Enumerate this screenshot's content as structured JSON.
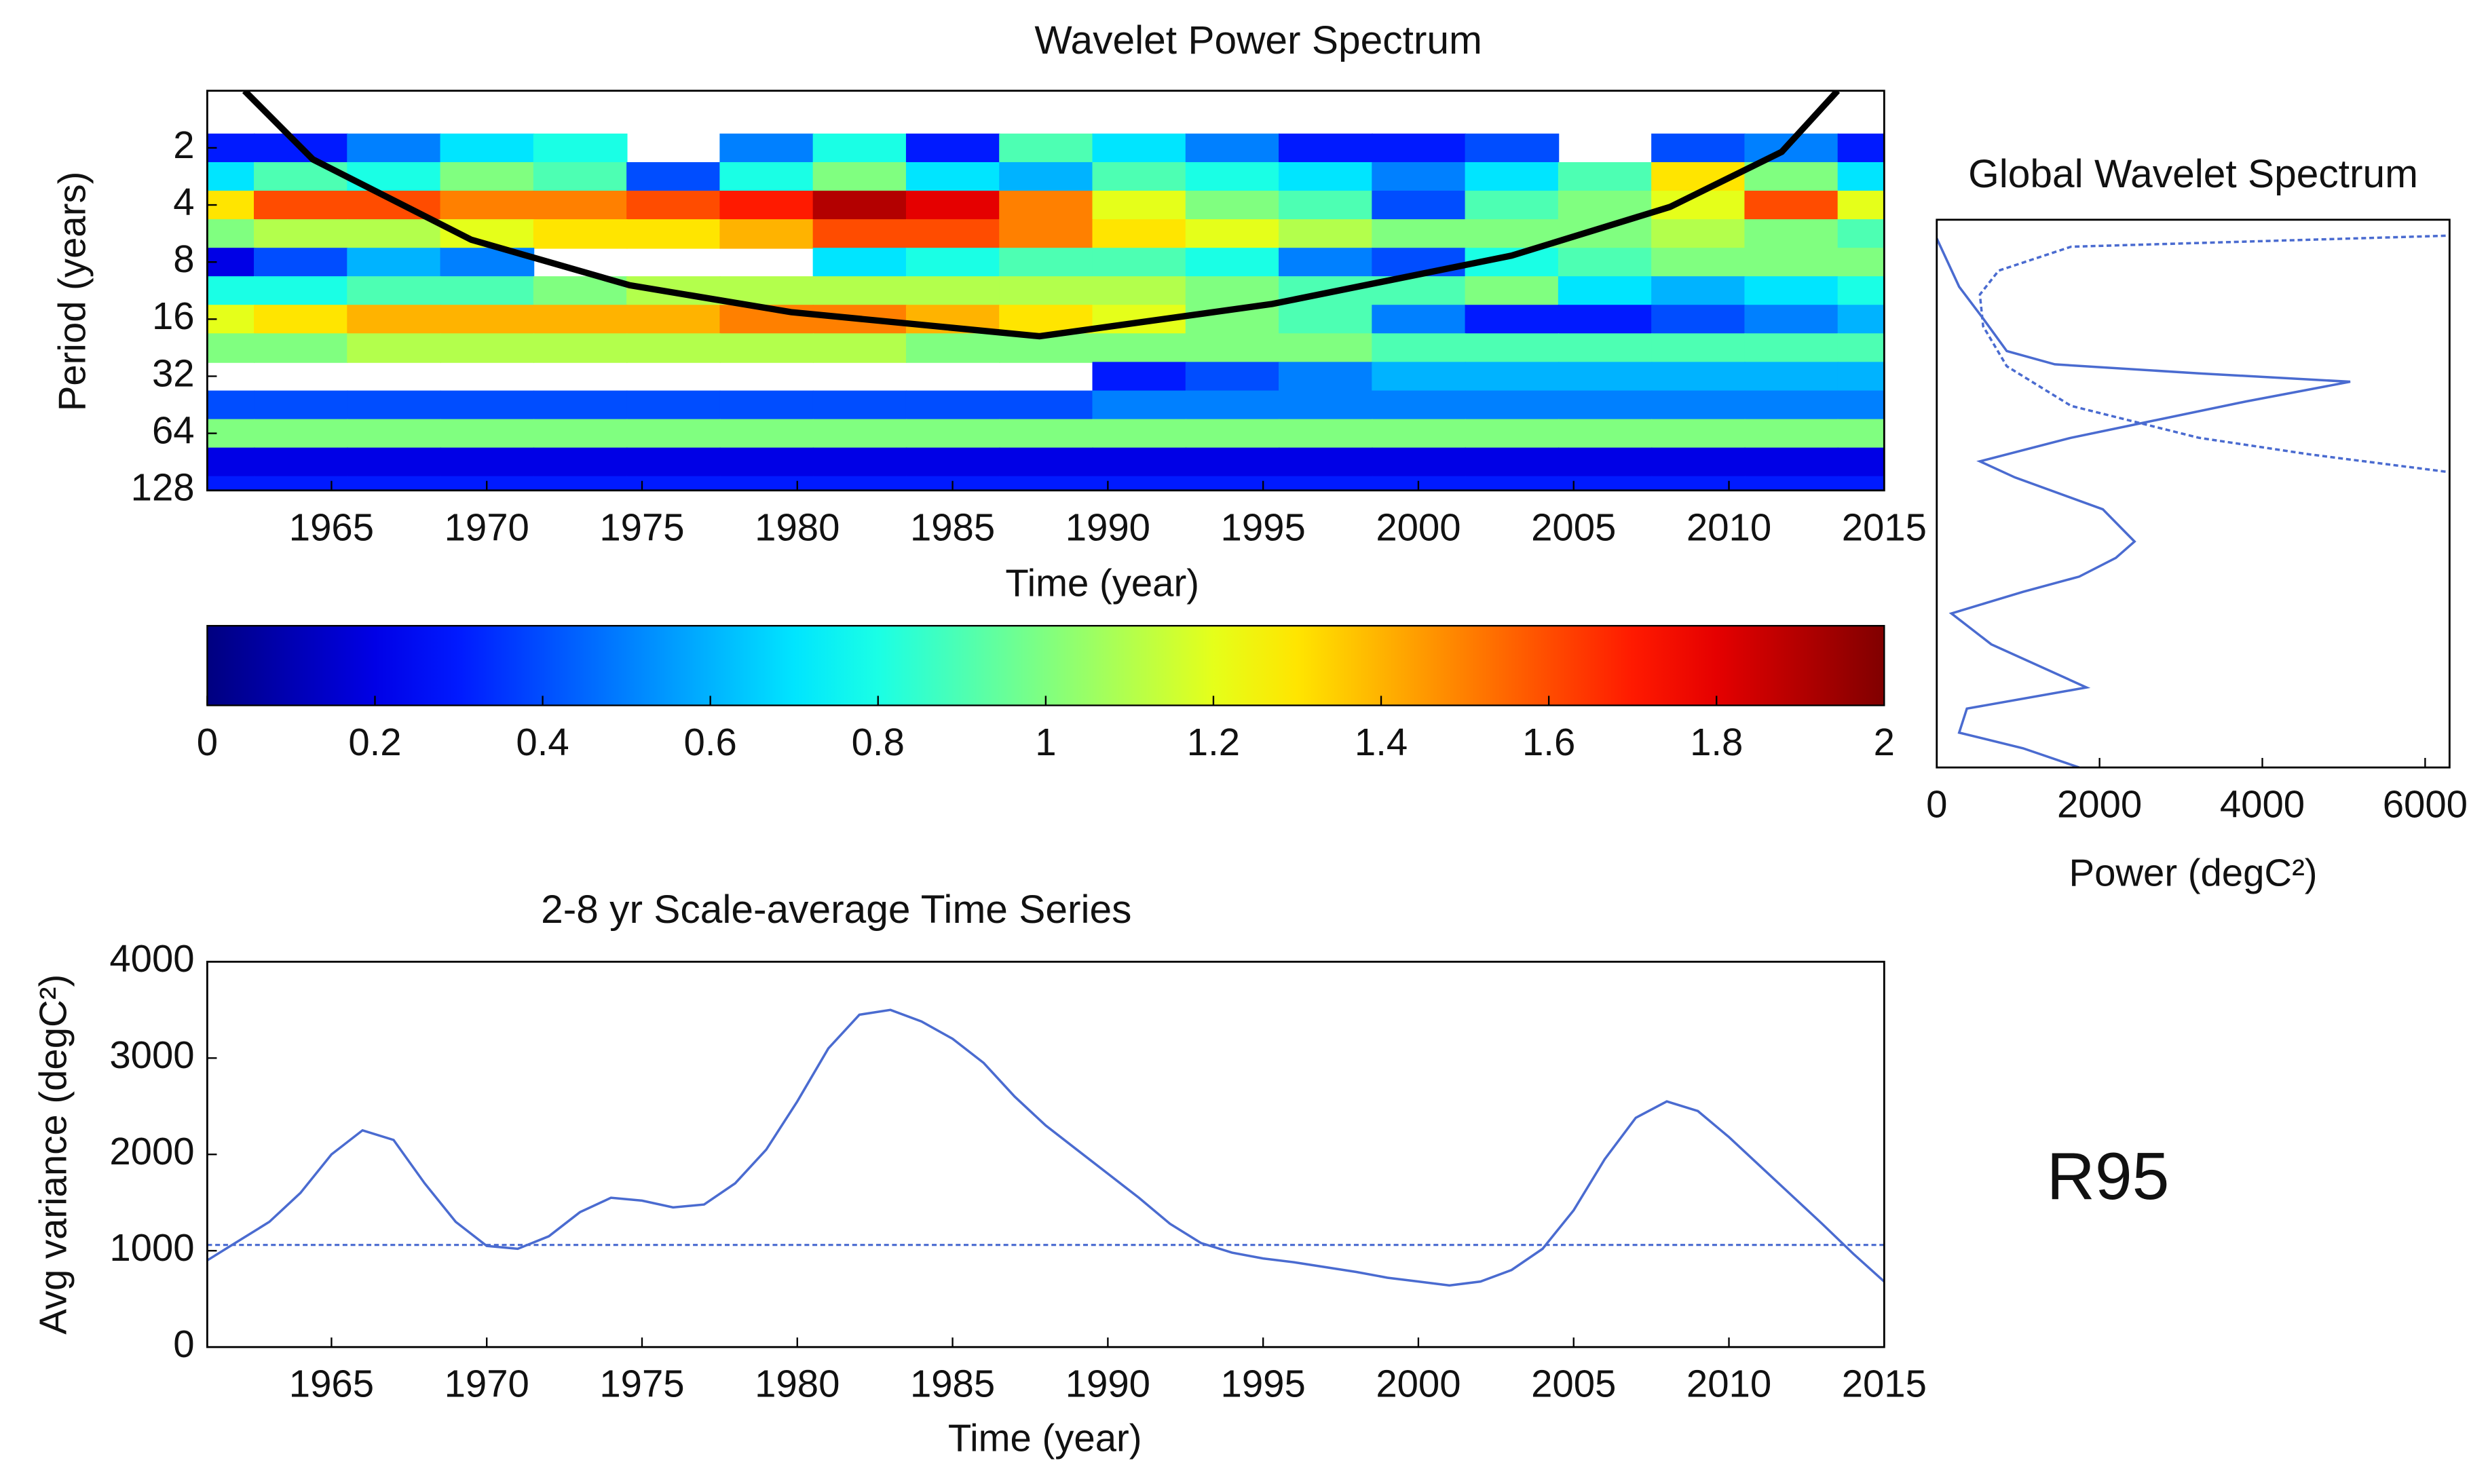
{
  "chart_data": [
    {
      "type": "contour",
      "title": "Wavelet Power Spectrum",
      "xlabel": "Time (year)",
      "ylabel": "Period (years)",
      "x": [
        1961,
        1964,
        1967,
        1970,
        1973,
        1976,
        1979,
        1982,
        1985,
        1988,
        1991,
        1994,
        1997,
        2000,
        2003,
        2006,
        2009,
        2012,
        2015
      ],
      "y": [
        2,
        2.83,
        4,
        5.66,
        8,
        11.3,
        16,
        22.6,
        32,
        45.3,
        64,
        90.5,
        128
      ],
      "z": [
        [
          0.3,
          0.3,
          0.5,
          0.7,
          0.8,
          null,
          0.5,
          0.8,
          0.3,
          0.9,
          0.7,
          0.5,
          0.3,
          0.3,
          0.4,
          null,
          0.4,
          0.5,
          0.3
        ],
        [
          0.7,
          0.9,
          0.8,
          1.0,
          0.9,
          0.4,
          0.8,
          1.0,
          0.7,
          0.6,
          0.9,
          0.8,
          0.7,
          0.5,
          0.7,
          0.9,
          1.3,
          1.0,
          0.7
        ],
        [
          1.3,
          1.6,
          1.6,
          1.5,
          1.5,
          1.6,
          1.7,
          1.9,
          1.8,
          1.5,
          1.2,
          1.0,
          0.9,
          0.4,
          0.9,
          1.0,
          1.2,
          1.6,
          1.2
        ],
        [
          1.0,
          1.1,
          1.1,
          1.2,
          1.3,
          1.3,
          1.4,
          1.6,
          1.6,
          1.5,
          1.3,
          1.2,
          1.1,
          1.0,
          1.0,
          1.0,
          1.1,
          1.0,
          0.9
        ],
        [
          0.2,
          0.4,
          0.6,
          0.5,
          null,
          null,
          null,
          0.7,
          0.8,
          0.9,
          0.9,
          0.8,
          0.5,
          0.4,
          0.8,
          0.9,
          1.0,
          1.0,
          1.0
        ],
        [
          0.8,
          0.8,
          0.9,
          0.9,
          1.0,
          1.1,
          1.1,
          1.1,
          1.1,
          1.1,
          1.1,
          1.0,
          0.9,
          0.9,
          1.0,
          0.7,
          0.6,
          0.7,
          0.8
        ],
        [
          1.2,
          1.3,
          1.4,
          1.4,
          1.4,
          1.4,
          1.5,
          1.5,
          1.4,
          1.3,
          1.2,
          1.0,
          0.9,
          0.5,
          0.3,
          0.3,
          0.4,
          0.5,
          0.6
        ],
        [
          1.0,
          1.0,
          1.1,
          1.1,
          1.1,
          1.1,
          1.1,
          1.1,
          1.0,
          1.0,
          1.0,
          1.0,
          1.0,
          0.9,
          0.9,
          0.9,
          0.9,
          0.9,
          0.9
        ],
        [
          null,
          null,
          null,
          null,
          null,
          null,
          null,
          null,
          null,
          null,
          0.3,
          0.4,
          0.5,
          0.6,
          0.6,
          0.6,
          0.6,
          0.6,
          0.6
        ],
        [
          0.4,
          0.4,
          0.4,
          0.4,
          0.4,
          0.4,
          0.4,
          0.4,
          0.4,
          0.4,
          0.5,
          0.5,
          0.5,
          0.5,
          0.5,
          0.5,
          0.5,
          0.5,
          0.5
        ],
        [
          1.0,
          1.0,
          1.0,
          1.0,
          1.0,
          1.0,
          1.0,
          1.0,
          1.0,
          1.0,
          1.0,
          1.0,
          1.0,
          1.0,
          1.0,
          1.0,
          1.0,
          1.0,
          1.0
        ],
        [
          0.2,
          0.2,
          0.2,
          0.2,
          0.2,
          0.2,
          0.2,
          0.2,
          0.2,
          0.2,
          0.2,
          0.2,
          0.2,
          0.2,
          0.2,
          0.2,
          0.2,
          0.2,
          0.2
        ],
        [
          0.3,
          0.3,
          0.3,
          0.3,
          0.3,
          0.3,
          0.3,
          0.3,
          0.3,
          0.3,
          0.3,
          0.3,
          0.3,
          0.3,
          0.3,
          0.3,
          0.3,
          0.3,
          0.3
        ]
      ],
      "coi": {
        "x": [
          1962.2,
          1964.4,
          1969.5,
          1974.6,
          1979.8,
          1987.8,
          1995.3,
          2003,
          2008.1,
          2011.7,
          2013.5
        ],
        "y": [
          1,
          2.3,
          6.1,
          10.6,
          14.7,
          19.7,
          13.3,
          7.4,
          4.1,
          2.1,
          1
        ],
        "color": "#000000"
      },
      "xlim": [
        1961,
        2015
      ],
      "ylim": [
        1,
        128
      ],
      "yscale": "log2",
      "yreversed": true,
      "xticks": [
        1965,
        1970,
        1975,
        1980,
        1985,
        1990,
        1995,
        2000,
        2005,
        2010,
        2015
      ],
      "yticks": [
        2,
        4,
        8,
        16,
        32,
        64,
        128
      ],
      "clim": [
        0,
        2
      ],
      "colormap": "jet"
    },
    {
      "type": "colorbar",
      "clim": [
        0,
        2
      ],
      "colormap": "jet",
      "ticks": [
        0,
        0.2,
        0.4,
        0.6,
        0.8,
        1,
        1.2,
        1.4,
        1.6,
        1.8,
        2
      ]
    },
    {
      "type": "line",
      "title": "Global Wavelet Spectrum",
      "xlabel": "Power (degC²)",
      "xlim": [
        0,
        6300
      ],
      "xticks": [
        0,
        2000,
        4000,
        6000
      ],
      "ylim": [
        1,
        128
      ],
      "yscale": "log2",
      "yreversed": true,
      "series": [
        {
          "color": "#4a6bd0",
          "linestyle": "solid",
          "x": [
            0,
            275,
            570,
            860,
            1450,
            3220,
            5080,
            3800,
            1650,
            530,
            960,
            2040,
            2430,
            2200,
            1750,
            1060,
            180,
            670,
            1840,
            370,
            275,
            1060,
            1750
          ],
          "y": [
            1.18,
            1.81,
            2.4,
            3.2,
            3.6,
            3.9,
            4.2,
            5.0,
            6.9,
            8.5,
            9.8,
            13,
            17.3,
            20,
            23.6,
            27,
            32.7,
            43,
            63,
            76,
            94,
            108,
            128
          ]
        },
        {
          "color": "#4a6bd0",
          "linestyle": "dashed",
          "x": [
            6350,
            1650,
            760,
            530,
            570,
            860,
            1650,
            3220,
            4590,
            6350
          ],
          "y": [
            1.15,
            1.27,
            1.57,
            1.94,
            2.57,
            3.66,
            5.2,
            6.9,
            8.0,
            9.4
          ]
        }
      ]
    },
    {
      "type": "line",
      "title": "2-8 yr Scale-average Time Series",
      "xlabel": "Time (year)",
      "ylabel": "Avg variance (degC²)",
      "x": [
        1961,
        1962,
        1963,
        1964,
        1965,
        1966,
        1967,
        1968,
        1969,
        1970,
        1971,
        1972,
        1973,
        1974,
        1975,
        1976,
        1977,
        1978,
        1979,
        1980,
        1981,
        1982,
        1983,
        1984,
        1985,
        1986,
        1987,
        1988,
        1989,
        1990,
        1991,
        1992,
        1993,
        1994,
        1995,
        1996,
        1997,
        1998,
        1999,
        2000,
        2001,
        2002,
        2003,
        2004,
        2005,
        2006,
        2007,
        2008,
        2009,
        2010,
        2011,
        2012,
        2013,
        2014,
        2015
      ],
      "series": [
        {
          "color": "#4a6bd0",
          "values": [
            900,
            1100,
            1300,
            1600,
            2000,
            2250,
            2150,
            1700,
            1300,
            1050,
            1020,
            1150,
            1400,
            1550,
            1520,
            1450,
            1480,
            1700,
            2050,
            2550,
            3100,
            3450,
            3500,
            3380,
            3200,
            2950,
            2600,
            2300,
            2050,
            1800,
            1550,
            1280,
            1080,
            980,
            920,
            880,
            830,
            780,
            720,
            680,
            640,
            680,
            800,
            1020,
            1420,
            1950,
            2380,
            2550,
            2450,
            2180,
            1880,
            1580,
            1280,
            970,
            680
          ]
        }
      ],
      "reference_line": {
        "value": 1060,
        "color": "#4a6bd0",
        "linestyle": "dashed"
      },
      "xlim": [
        1961,
        2015
      ],
      "ylim": [
        0,
        4000
      ],
      "xticks": [
        1965,
        1970,
        1975,
        1980,
        1985,
        1990,
        1995,
        2000,
        2005,
        2010,
        2015
      ],
      "yticks": [
        0,
        1000,
        2000,
        3000,
        4000
      ]
    }
  ],
  "figure_label": "R95"
}
